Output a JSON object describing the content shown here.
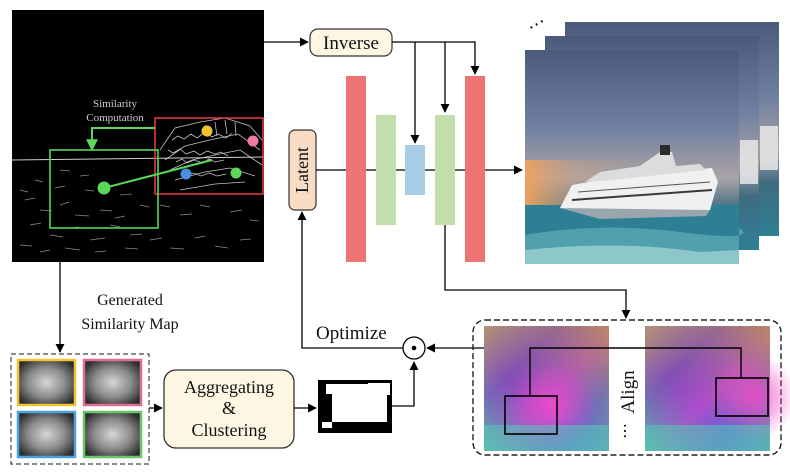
{
  "labels": {
    "similarity_computation_line1": "Similarity",
    "similarity_computation_line2": "Computation",
    "inverse": "Inverse",
    "latent": "Latent",
    "generated_line1": "Generated",
    "generated_line2": "Similarity Map",
    "optimize": "Optimize",
    "aggregating_line1": "Aggregating",
    "aggregating_line2": "&",
    "aggregating_line3": "Clustering",
    "align": "Align",
    "stack_ellipsis": "⋯",
    "align_ellipsis": "⋯",
    "odot": "⊙"
  },
  "colors": {
    "unet_red": "#ee7474",
    "unet_green": "#c3ddac",
    "unet_blue": "#a9cde4",
    "latent_fill": "#f8dcc3",
    "cream_fill": "#fdf6e3",
    "point_yellow": "#f2c12e",
    "point_pink": "#f07aa0",
    "point_blue": "#4a90e2",
    "point_green": "#5bd75b",
    "map_border_yellow": "#f1c232",
    "map_border_pink": "#e06c9a",
    "map_border_blue": "#4aa3df",
    "map_border_green": "#6ac46a"
  }
}
